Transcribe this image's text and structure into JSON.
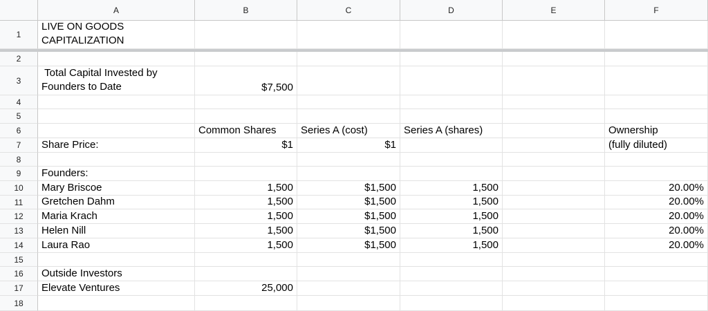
{
  "columns": [
    "A",
    "B",
    "C",
    "D",
    "E",
    "F"
  ],
  "row_numbers": [
    "1",
    "2",
    "3",
    "4",
    "5",
    "6",
    "7",
    "8",
    "9",
    "10",
    "11",
    "12",
    "13",
    "14",
    "15",
    "16",
    "17",
    "18"
  ],
  "cells": {
    "r1": {
      "A": "LIVE ON GOODS CAPITALIZATION"
    },
    "r3": {
      "A": " Total Capital Invested by Founders to Date",
      "B": "$7,500"
    },
    "r6": {
      "B": "Common Shares",
      "C": "Series A (cost)",
      "D": "Series A (shares)",
      "F": "Ownership"
    },
    "r7": {
      "A": "Share Price:",
      "B": "$1",
      "C": "$1",
      "F": "(fully diluted)"
    },
    "r9": {
      "A": "Founders:"
    },
    "r10": {
      "A": "Mary Briscoe",
      "B": "1,500",
      "C": "$1,500",
      "D": "1,500",
      "F": "20.00%"
    },
    "r11": {
      "A": "Gretchen Dahm",
      "B": "1,500",
      "C": "$1,500",
      "D": "1,500",
      "F": "20.00%"
    },
    "r12": {
      "A": "Maria Krach",
      "B": "1,500",
      "C": "$1,500",
      "D": "1,500",
      "F": "20.00%"
    },
    "r13": {
      "A": "Helen Nill",
      "B": "1,500",
      "C": "$1,500",
      "D": "1,500",
      "F": "20.00%"
    },
    "r14": {
      "A": "Laura Rao",
      "B": "1,500",
      "C": "$1,500",
      "D": "1,500",
      "F": "20.00%"
    },
    "r16": {
      "A": "Outside Investors"
    },
    "r17": {
      "A": "Elevate Ventures",
      "B": "25,000"
    }
  }
}
